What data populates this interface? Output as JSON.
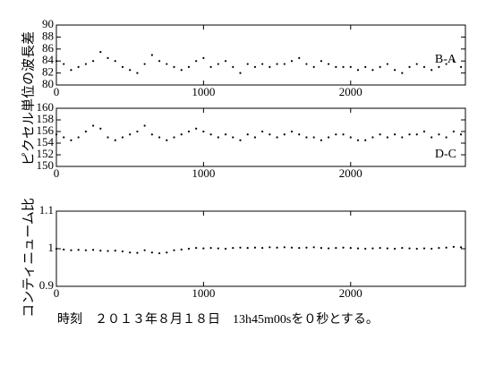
{
  "chart_data": [
    {
      "type": "scatter",
      "ylabel": "ピクセル単位の波長差",
      "annotation": "B-A",
      "color": "#000000",
      "x": [
        0,
        50,
        100,
        150,
        200,
        250,
        300,
        350,
        400,
        450,
        500,
        550,
        600,
        650,
        700,
        750,
        800,
        850,
        900,
        950,
        1000,
        1050,
        1100,
        1150,
        1200,
        1250,
        1300,
        1350,
        1400,
        1450,
        1500,
        1550,
        1600,
        1650,
        1700,
        1750,
        1800,
        1850,
        1900,
        1950,
        2000,
        2050,
        2100,
        2150,
        2200,
        2250,
        2300,
        2350,
        2400,
        2450,
        2500,
        2550,
        2600,
        2650,
        2700,
        2750
      ],
      "values": [
        84,
        83.5,
        82.5,
        83,
        83.5,
        84,
        85.5,
        84.5,
        84,
        83,
        82.5,
        82,
        83.5,
        85,
        84,
        83.5,
        83,
        82.5,
        83,
        84,
        84.5,
        83,
        83.5,
        84,
        83,
        82,
        83.5,
        83,
        83.5,
        83,
        83.5,
        83.5,
        84,
        84.5,
        83.5,
        83,
        84,
        83.5,
        83,
        83,
        83,
        82.5,
        83,
        82.5,
        83,
        83.5,
        82.5,
        82,
        83,
        83.5,
        83,
        82.5,
        83,
        83.5,
        84,
        83
      ],
      "xlim": [
        0,
        2780
      ],
      "xticks": [
        0,
        1000,
        2000
      ],
      "ylim": [
        80,
        90
      ],
      "yticks": [
        80,
        82,
        84,
        86,
        88,
        90
      ]
    },
    {
      "type": "scatter",
      "annotation": "D-C",
      "color": "#000000",
      "x": [
        0,
        50,
        100,
        150,
        200,
        250,
        300,
        350,
        400,
        450,
        500,
        550,
        600,
        650,
        700,
        750,
        800,
        850,
        900,
        950,
        1000,
        1050,
        1100,
        1150,
        1200,
        1250,
        1300,
        1350,
        1400,
        1450,
        1500,
        1550,
        1600,
        1650,
        1700,
        1750,
        1800,
        1850,
        1900,
        1950,
        2000,
        2050,
        2100,
        2150,
        2200,
        2250,
        2300,
        2350,
        2400,
        2450,
        2500,
        2550,
        2600,
        2650,
        2700,
        2750
      ],
      "values": [
        155.5,
        155,
        154.5,
        155,
        156,
        157,
        156.5,
        155,
        154.5,
        155,
        155.5,
        156,
        157,
        155.5,
        155,
        154.5,
        155,
        155.5,
        156,
        156.5,
        156,
        155.5,
        155,
        155.5,
        155,
        154.5,
        155.5,
        155,
        156,
        155.5,
        155,
        155.5,
        156,
        155.5,
        155,
        155,
        154.5,
        155,
        155.5,
        155.5,
        155,
        154.5,
        154.5,
        155,
        155.5,
        155,
        155.5,
        155,
        155.5,
        155.5,
        156,
        155,
        155.5,
        155,
        156,
        155.5
      ],
      "xlim": [
        0,
        2780
      ],
      "xticks": [
        0,
        1000,
        2000
      ],
      "ylim": [
        150,
        160
      ],
      "yticks": [
        150,
        152,
        154,
        156,
        158,
        160
      ]
    },
    {
      "type": "scatter",
      "ylabel": "コンティニューム比",
      "color": "#000000",
      "x": [
        0,
        50,
        100,
        150,
        200,
        250,
        300,
        350,
        400,
        450,
        500,
        550,
        600,
        650,
        700,
        750,
        800,
        850,
        900,
        950,
        1000,
        1050,
        1100,
        1150,
        1200,
        1250,
        1300,
        1350,
        1400,
        1450,
        1500,
        1550,
        1600,
        1650,
        1700,
        1750,
        1800,
        1850,
        1900,
        1950,
        2000,
        2050,
        2100,
        2150,
        2200,
        2250,
        2300,
        2350,
        2400,
        2450,
        2500,
        2550,
        2600,
        2650,
        2700,
        2750
      ],
      "values": [
        1.0,
        0.998,
        0.996,
        0.997,
        0.996,
        0.997,
        0.995,
        0.994,
        0.995,
        0.993,
        0.99,
        0.989,
        0.996,
        0.99,
        0.988,
        0.99,
        0.996,
        0.998,
        1.0,
        1.002,
        1.001,
        1.002,
        1.001,
        1.0,
        1.002,
        1.003,
        1.002,
        1.003,
        1.002,
        1.004,
        1.003,
        1.004,
        1.003,
        1.002,
        1.003,
        1.004,
        1.002,
        1.001,
        1.002,
        1.003,
        1.002,
        1.001,
        1.0,
        1.001,
        1.002,
        1.001,
        1.0,
        1.002,
        1.001,
        1.0,
        1.001,
        1.0,
        1.002,
        1.003,
        1.005,
        1.004
      ],
      "xlim": [
        0,
        2780
      ],
      "xticks": [
        0,
        1000,
        2000
      ],
      "ylim": [
        0.9,
        1.1
      ],
      "yticks": [
        0.9,
        1,
        1.1
      ]
    }
  ],
  "caption": "時刻　２０１３年８月１８日　13h45m00sを０秒とする。"
}
